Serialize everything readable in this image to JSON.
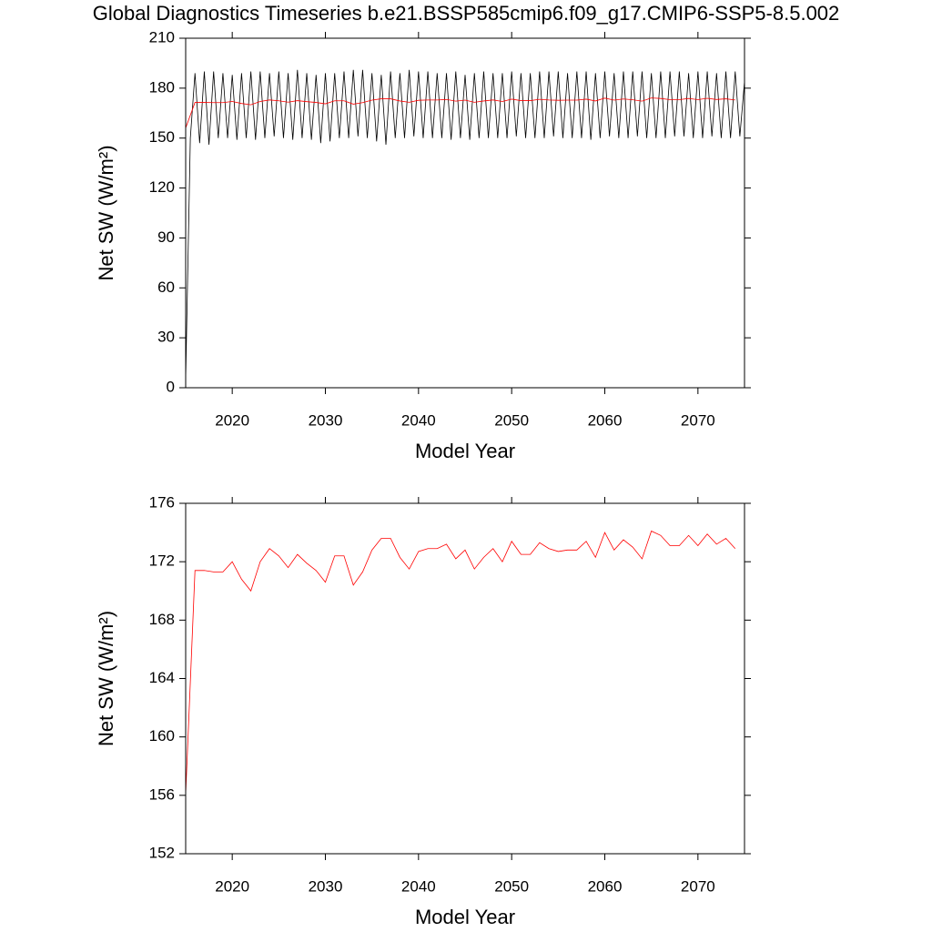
{
  "chart_data": [
    {
      "type": "line",
      "title": "Global Diagnostics Timeseries b.e21.BSSP585cmip6.f09_g17.CMIP6-SSP5-8.5.002",
      "xlabel": "Model Year",
      "ylabel": "Net SW (W/m²)",
      "xlim": [
        2015,
        2075
      ],
      "xticks": [
        2020,
        2030,
        2040,
        2050,
        2060,
        2070
      ],
      "ylim": [
        0,
        210
      ],
      "yticks": [
        0,
        30,
        60,
        90,
        120,
        150,
        180,
        210
      ],
      "series": [
        {
          "color": "#000000",
          "x": [
            2015,
            2015.5,
            2016,
            2016.5,
            2017,
            2017.5,
            2018,
            2018.5,
            2019,
            2019.5,
            2020,
            2020.5,
            2021,
            2021.5,
            2022,
            2022.5,
            2023,
            2023.5,
            2024,
            2024.5,
            2025,
            2025.5,
            2026,
            2026.5,
            2027,
            2027.5,
            2028,
            2028.5,
            2029,
            2029.5,
            2030,
            2030.5,
            2031,
            2031.5,
            2032,
            2032.5,
            2033,
            2033.5,
            2034,
            2034.5,
            2035,
            2035.5,
            2036,
            2036.5,
            2037,
            2037.5,
            2038,
            2038.5,
            2039,
            2039.5,
            2040,
            2040.5,
            2041,
            2041.5,
            2042,
            2042.5,
            2043,
            2043.5,
            2044,
            2044.5,
            2045,
            2045.5,
            2046,
            2046.5,
            2047,
            2047.5,
            2048,
            2048.5,
            2049,
            2049.5,
            2050,
            2050.5,
            2051,
            2051.5,
            2052,
            2052.5,
            2053,
            2053.5,
            2054,
            2054.5,
            2055,
            2055.5,
            2056,
            2056.5,
            2057,
            2057.5,
            2058,
            2058.5,
            2059,
            2059.5,
            2060,
            2060.5,
            2061,
            2061.5,
            2062,
            2062.5,
            2063,
            2063.5,
            2064,
            2064.5,
            2065,
            2065.5,
            2066,
            2066.5,
            2067,
            2067.5,
            2068,
            2068.5,
            2069,
            2069.5,
            2070,
            2070.5,
            2071,
            2071.5,
            2072,
            2072.5,
            2073,
            2073.5,
            2074,
            2074.5,
            2075
          ],
          "values": [
            5,
            150,
            189,
            147,
            190,
            146,
            190,
            150,
            189,
            150,
            188,
            149,
            189,
            150,
            190,
            149,
            190,
            150,
            189,
            151,
            190,
            150,
            189,
            149,
            191,
            150,
            189,
            149,
            188,
            147,
            189,
            148,
            189,
            150,
            190,
            150,
            191,
            151,
            191,
            150,
            189,
            148,
            188,
            146,
            190,
            150,
            189,
            150,
            191,
            151,
            190,
            150,
            190,
            150,
            189,
            150,
            189,
            149,
            190,
            150,
            188,
            149,
            189,
            150,
            190,
            150,
            189,
            150,
            189,
            150,
            190,
            151,
            189,
            150,
            189,
            150,
            190,
            150,
            190,
            151,
            190,
            150,
            189,
            150,
            190,
            150,
            190,
            149,
            189,
            150,
            190,
            151,
            189,
            150,
            190,
            150,
            190,
            151,
            190,
            150,
            189,
            150,
            190,
            150,
            190,
            151,
            190,
            151,
            189,
            150,
            190,
            150,
            190,
            151,
            189,
            150,
            190,
            150,
            190,
            151,
            184
          ]
        },
        {
          "color": "#ff0000",
          "x": [
            2015,
            2016,
            2017,
            2018,
            2019,
            2020,
            2021,
            2022,
            2023,
            2024,
            2025,
            2026,
            2027,
            2028,
            2029,
            2030,
            2031,
            2032,
            2033,
            2034,
            2035,
            2036,
            2037,
            2038,
            2039,
            2040,
            2041,
            2042,
            2043,
            2044,
            2045,
            2046,
            2047,
            2048,
            2049,
            2050,
            2051,
            2052,
            2053,
            2054,
            2055,
            2056,
            2057,
            2058,
            2059,
            2060,
            2061,
            2062,
            2063,
            2064,
            2065,
            2066,
            2067,
            2068,
            2069,
            2070,
            2071,
            2072,
            2073,
            2074
          ],
          "values": [
            156.1,
            171.4,
            171.4,
            171.3,
            171.3,
            172.0,
            170.8,
            170.0,
            172.0,
            172.9,
            172.4,
            171.6,
            172.5,
            171.9,
            171.4,
            170.6,
            172.4,
            172.4,
            170.4,
            171.3,
            172.8,
            173.6,
            173.6,
            172.3,
            171.5,
            172.7,
            172.9,
            172.9,
            173.2,
            172.2,
            172.8,
            171.5,
            172.3,
            172.9,
            172.0,
            173.4,
            172.5,
            172.5,
            173.3,
            172.9,
            172.7,
            172.8,
            172.8,
            173.4,
            172.3,
            174.0,
            172.8,
            173.5,
            173.0,
            172.2,
            174.1,
            173.8,
            173.1,
            173.1,
            173.8,
            173.1,
            173.9,
            173.2,
            173.6,
            172.9
          ]
        }
      ]
    },
    {
      "type": "line",
      "xlabel": "Model Year",
      "ylabel": "Net SW (W/m²)",
      "xlim": [
        2015,
        2075
      ],
      "xticks": [
        2020,
        2030,
        2040,
        2050,
        2060,
        2070
      ],
      "ylim": [
        152,
        176
      ],
      "yticks": [
        152,
        156,
        160,
        164,
        168,
        172,
        176
      ],
      "series": [
        {
          "color": "#ff0000",
          "x": [
            2015,
            2016,
            2017,
            2018,
            2019,
            2020,
            2021,
            2022,
            2023,
            2024,
            2025,
            2026,
            2027,
            2028,
            2029,
            2030,
            2031,
            2032,
            2033,
            2034,
            2035,
            2036,
            2037,
            2038,
            2039,
            2040,
            2041,
            2042,
            2043,
            2044,
            2045,
            2046,
            2047,
            2048,
            2049,
            2050,
            2051,
            2052,
            2053,
            2054,
            2055,
            2056,
            2057,
            2058,
            2059,
            2060,
            2061,
            2062,
            2063,
            2064,
            2065,
            2066,
            2067,
            2068,
            2069,
            2070,
            2071,
            2072,
            2073,
            2074
          ],
          "values": [
            156.1,
            171.4,
            171.4,
            171.3,
            171.3,
            172.0,
            170.8,
            170.0,
            172.0,
            172.9,
            172.4,
            171.6,
            172.5,
            171.9,
            171.4,
            170.6,
            172.4,
            172.4,
            170.4,
            171.3,
            172.8,
            173.6,
            173.6,
            172.3,
            171.5,
            172.7,
            172.9,
            172.9,
            173.2,
            172.2,
            172.8,
            171.5,
            172.3,
            172.9,
            172.0,
            173.4,
            172.5,
            172.5,
            173.3,
            172.9,
            172.7,
            172.8,
            172.8,
            173.4,
            172.3,
            174.0,
            172.8,
            173.5,
            173.0,
            172.2,
            174.1,
            173.8,
            173.1,
            173.1,
            173.8,
            173.1,
            173.9,
            173.2,
            173.6,
            172.9
          ]
        }
      ]
    }
  ]
}
